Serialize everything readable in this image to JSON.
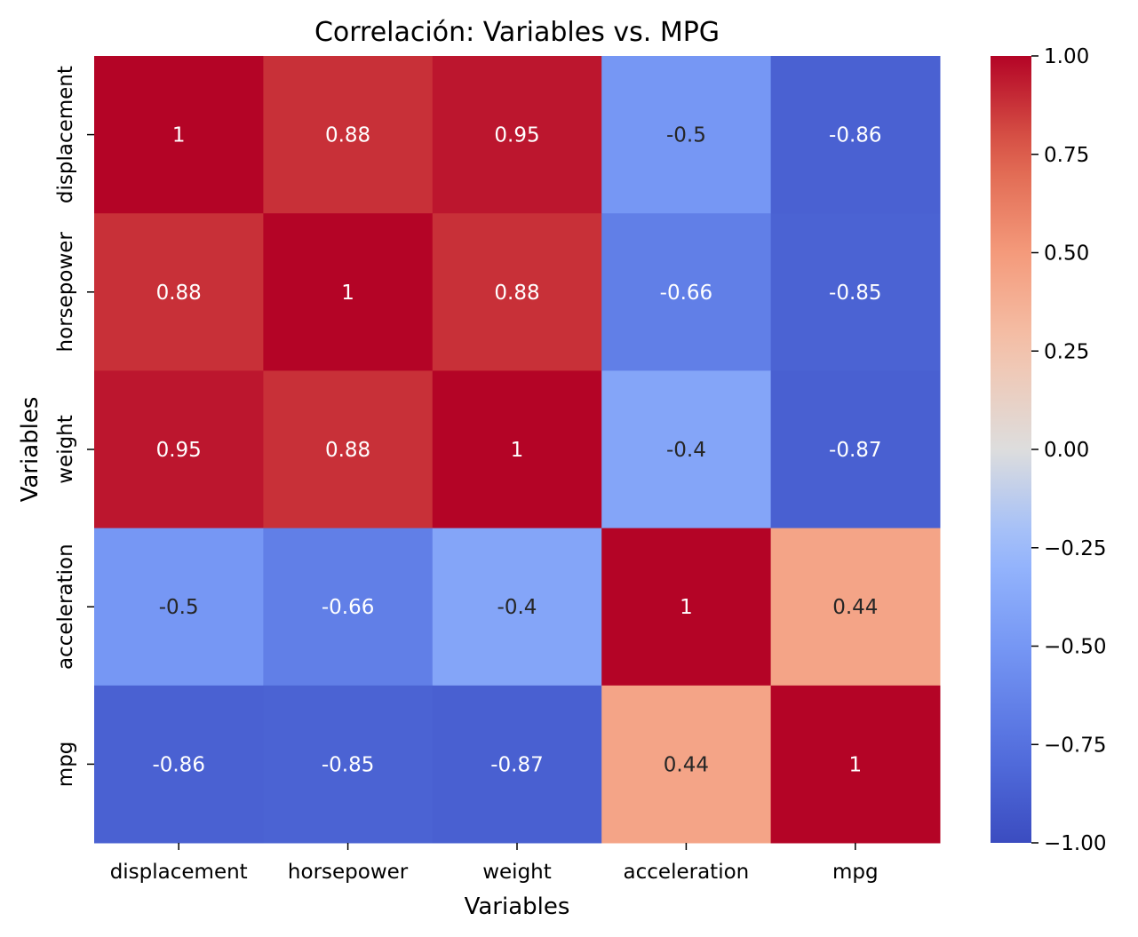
{
  "chart_data": {
    "type": "heatmap",
    "title": "Correlación: Variables vs. MPG",
    "xlabel": "Variables",
    "ylabel": "Variables",
    "x_categories": [
      "displacement",
      "horsepower",
      "weight",
      "acceleration",
      "mpg"
    ],
    "y_categories": [
      "displacement",
      "horsepower",
      "weight",
      "acceleration",
      "mpg"
    ],
    "values": [
      [
        1,
        0.88,
        0.95,
        -0.5,
        -0.86
      ],
      [
        0.88,
        1,
        0.88,
        -0.66,
        -0.85
      ],
      [
        0.95,
        0.88,
        1,
        -0.4,
        -0.87
      ],
      [
        -0.5,
        -0.66,
        -0.4,
        1,
        0.44
      ],
      [
        -0.86,
        -0.85,
        -0.87,
        0.44,
        1
      ]
    ],
    "annotations": [
      [
        "1",
        "0.88",
        "0.95",
        "-0.5",
        "-0.86"
      ],
      [
        "0.88",
        "1",
        "0.88",
        "-0.66",
        "-0.85"
      ],
      [
        "0.95",
        "0.88",
        "1",
        "-0.4",
        "-0.87"
      ],
      [
        "-0.5",
        "-0.66",
        "-0.4",
        "1",
        "0.44"
      ],
      [
        "-0.86",
        "-0.85",
        "-0.87",
        "0.44",
        "1"
      ]
    ],
    "colormap": "coolwarm",
    "vmin": -1,
    "vmax": 1,
    "colorbar_ticks": [
      1.0,
      0.75,
      0.5,
      0.25,
      0.0,
      -0.25,
      -0.5,
      -0.75,
      -1.0
    ],
    "colorbar_tick_labels": [
      "1.00",
      "0.75",
      "0.50",
      "0.25",
      "0.00",
      "−0.25",
      "−0.50",
      "−0.75",
      "−1.00"
    ]
  }
}
